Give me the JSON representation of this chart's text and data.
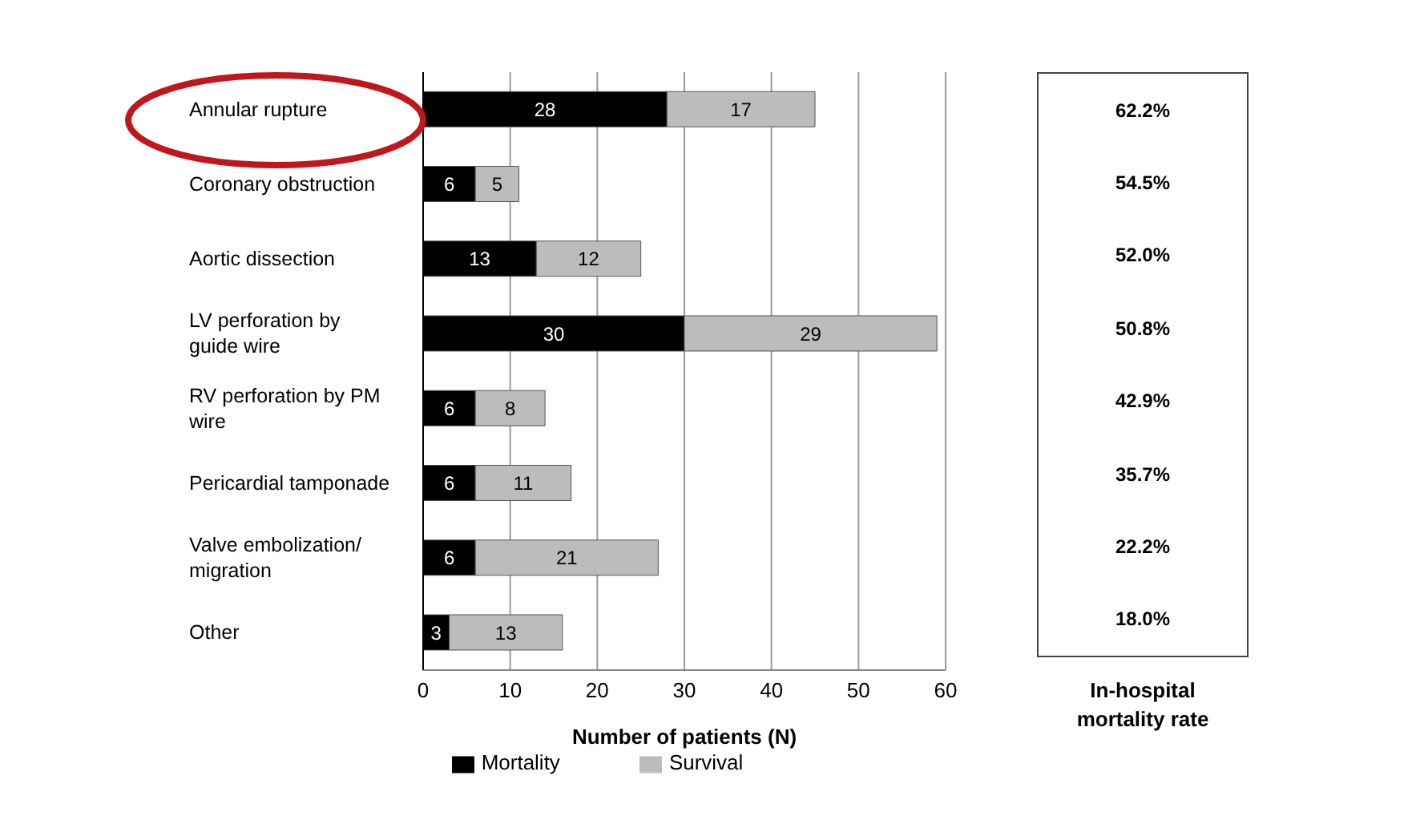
{
  "chart_data": [
    {
      "type": "bar",
      "orientation": "horizontal",
      "stacked": true,
      "categories": [
        "Annular rupture",
        "Coronary obstruction",
        "Aortic dissection",
        "LV perforation by guide wire",
        "RV perforation by PM wire",
        "Pericardial tamponade",
        "Valve embolization/ migration",
        "Other"
      ],
      "series": [
        {
          "name": "Mortality",
          "color": "#000000",
          "values": [
            28,
            6,
            13,
            30,
            6,
            6,
            6,
            3
          ]
        },
        {
          "name": "Survival",
          "color": "#bcbcbc",
          "values": [
            17,
            5,
            12,
            29,
            8,
            11,
            21,
            13
          ]
        }
      ],
      "xlim": [
        0,
        60
      ],
      "xticks": [
        0,
        10,
        20,
        30,
        40,
        50,
        60
      ],
      "xlabel": "Number of patients (N)",
      "grid": "x",
      "legend": "bottom",
      "data_labels": true
    },
    {
      "type": "other",
      "title": "In-hospital mortality rate",
      "annotations": [
        "62.2%",
        "54.5%",
        "52.0%",
        "50.8%",
        "42.9%",
        "35.7%",
        "22.2%",
        "18.0%"
      ]
    }
  ]
}
